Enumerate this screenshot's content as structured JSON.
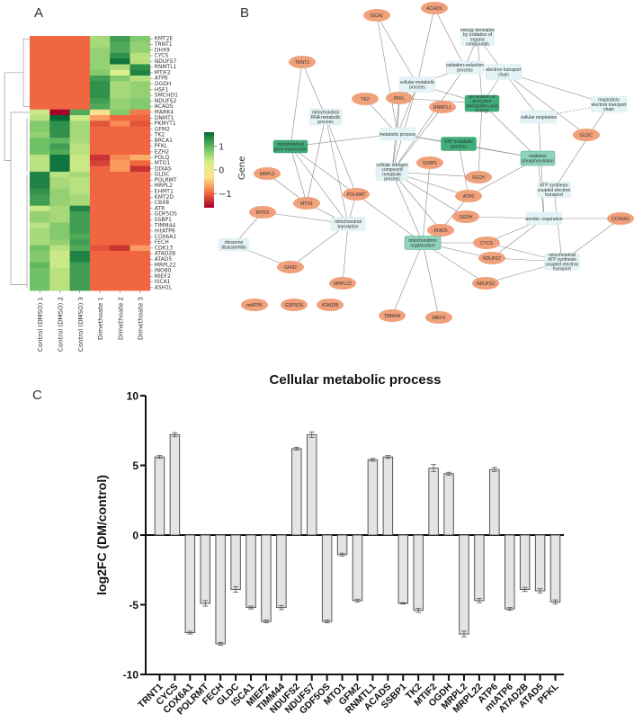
{
  "panels": {
    "a": "A",
    "b": "B",
    "c": "C"
  },
  "chart_data": [
    {
      "type": "heatmap",
      "panel": "A",
      "columns": [
        "Control (DMSO) 1",
        "Control (DMSO) 2",
        "Control (DMSO) 3",
        "Dimethoate 1",
        "Dimethoate 2",
        "Dimethoate 3"
      ],
      "rows": [
        "KMT2E",
        "TRNT1",
        "DHX9",
        "CYCS",
        "NDUFS7",
        "RNMTL1",
        "MTIF2",
        "ATP6",
        "OGDH",
        "HSF1",
        "SMCHD1",
        "NDUFS2",
        "ACADS",
        "MARK4",
        "DNMT1",
        "PKMYT1",
        "GFM2",
        "TK2",
        "BRCA1",
        "PFKL",
        "EZH2",
        "POLQ",
        "MTO1",
        "DDIAS",
        "GLDC",
        "POLRMT",
        "MRPL2",
        "EHMT1",
        "KMT2D",
        "CBX8",
        "ATR",
        "GDF5OS",
        "SSBP1",
        "TIMM44",
        "mtATP6",
        "COX6A1",
        "FECH",
        "CDK13",
        "ATAD2B",
        "ATAD5",
        "MRPL22",
        "INO80",
        "MIEF2",
        "ISCA1",
        "ASH1L"
      ],
      "values": [
        [
          -1.0,
          -1.0,
          -1.0,
          0.6,
          1.2,
          0.8
        ],
        [
          -1.0,
          -1.0,
          -1.0,
          0.6,
          1.1,
          0.7
        ],
        [
          -1.0,
          -1.0,
          -1.0,
          0.7,
          1.1,
          0.7
        ],
        [
          -1.0,
          -1.0,
          -1.0,
          0.7,
          1.3,
          0.5
        ],
        [
          -1.0,
          -1.0,
          -1.0,
          0.7,
          1.5,
          0.5
        ],
        [
          -1.0,
          -1.0,
          -1.0,
          0.7,
          0.6,
          1.3
        ],
        [
          -1.0,
          -1.0,
          -1.0,
          0.8,
          0.3,
          1.4
        ],
        [
          -1.0,
          -1.0,
          -1.0,
          1.2,
          0.8,
          0.5
        ],
        [
          -1.0,
          -1.0,
          -1.0,
          1.3,
          0.6,
          0.7
        ],
        [
          -1.0,
          -1.0,
          -1.0,
          1.3,
          0.6,
          0.7
        ],
        [
          -1.0,
          -1.0,
          -1.0,
          1.3,
          0.6,
          0.7
        ],
        [
          -1.0,
          -1.0,
          -1.0,
          1.2,
          0.7,
          0.8
        ],
        [
          -1.0,
          -1.0,
          -1.0,
          1.1,
          0.7,
          0.8
        ],
        [
          0.4,
          -1.6,
          1.1,
          -0.3,
          0.8,
          -0.9
        ],
        [
          0.5,
          1.6,
          0.4,
          -0.7,
          -1.0,
          -1.0
        ],
        [
          0.8,
          1.3,
          0.6,
          -1.1,
          -0.8,
          -1.1
        ],
        [
          0.8,
          1.3,
          0.6,
          -1.0,
          -1.0,
          -1.0
        ],
        [
          0.7,
          1.3,
          0.6,
          -1.0,
          -1.0,
          -1.0
        ],
        [
          0.9,
          1.0,
          0.6,
          -1.0,
          -1.0,
          -1.0
        ],
        [
          0.9,
          1.2,
          0.5,
          -1.0,
          -1.0,
          -1.0
        ],
        [
          0.9,
          1.1,
          0.5,
          -1.0,
          -1.0,
          -1.0
        ],
        [
          0.5,
          1.5,
          0.4,
          -1.3,
          -0.8,
          -0.6
        ],
        [
          0.5,
          1.5,
          0.4,
          -1.2,
          -0.7,
          -1.0
        ],
        [
          0.5,
          1.5,
          0.4,
          -1.0,
          -0.7,
          -1.3
        ],
        [
          1.4,
          0.5,
          0.6,
          -1.0,
          -1.0,
          -1.0
        ],
        [
          1.4,
          0.6,
          0.5,
          -1.0,
          -1.0,
          -1.0
        ],
        [
          1.4,
          0.6,
          0.5,
          -1.0,
          -1.0,
          -1.0
        ],
        [
          1.3,
          0.7,
          0.5,
          -1.0,
          -1.0,
          -1.0
        ],
        [
          1.2,
          0.7,
          0.6,
          -1.0,
          -1.0,
          -1.0
        ],
        [
          1.2,
          0.7,
          0.6,
          -1.0,
          -1.0,
          -1.0
        ],
        [
          0.4,
          0.6,
          1.4,
          -1.0,
          -1.0,
          -1.0
        ],
        [
          0.7,
          0.6,
          1.2,
          -1.0,
          -1.0,
          -1.0
        ],
        [
          0.7,
          0.6,
          1.2,
          -1.0,
          -1.0,
          -1.0
        ],
        [
          0.5,
          0.8,
          1.2,
          -1.0,
          -1.0,
          -1.0
        ],
        [
          0.6,
          0.8,
          1.2,
          -1.0,
          -1.0,
          -1.0
        ],
        [
          0.6,
          0.8,
          1.1,
          -1.0,
          -1.0,
          -1.0
        ],
        [
          0.6,
          0.7,
          1.2,
          -1.0,
          -1.0,
          -1.0
        ],
        [
          0.9,
          0.5,
          1.1,
          -1.1,
          -1.3,
          -0.7
        ],
        [
          0.8,
          0.4,
          1.4,
          -1.0,
          -1.0,
          -1.0
        ],
        [
          0.8,
          0.4,
          1.4,
          -1.0,
          -1.0,
          -1.0
        ],
        [
          1.0,
          0.4,
          1.2,
          -1.0,
          -1.0,
          -1.0
        ],
        [
          0.9,
          0.5,
          1.2,
          -1.0,
          -1.0,
          -1.0
        ],
        [
          0.9,
          0.5,
          1.2,
          -1.0,
          -1.0,
          -1.0
        ],
        [
          0.9,
          0.5,
          1.2,
          -1.0,
          -1.0,
          -1.0
        ],
        [
          0.9,
          0.5,
          1.2,
          -1.0,
          -1.0,
          -1.0
        ]
      ],
      "colorbar": {
        "label": "Gene",
        "ticks": [
          "1",
          "0",
          "−1"
        ],
        "tick_values": [
          1,
          0,
          -1
        ],
        "range": [
          -1.6,
          1.6
        ]
      },
      "colormap": [
        "#a50026",
        "#f46d43",
        "#fee08b",
        "#d9ef8b",
        "#66bd63",
        "#006837"
      ]
    },
    {
      "type": "network",
      "panel": "B",
      "colors": {
        "gene": "#f0a07a",
        "process_light": "#e4f3f5",
        "process_mid": "#8fd4bd",
        "process_dark": "#3fae7a",
        "edge": "#888888"
      },
      "process_nodes": [
        {
          "id": "cmp",
          "label": [
            "cellular metabolic",
            "process"
          ],
          "shade": "light"
        },
        {
          "id": "orp",
          "label": [
            "oxidation-reduction",
            "process"
          ],
          "shade": "light"
        },
        {
          "id": "edo",
          "label": [
            "energy derivation",
            "by oxidation of",
            "organic",
            "compounds"
          ],
          "shade": "light"
        },
        {
          "id": "etc",
          "label": [
            "electron transport",
            "chain"
          ],
          "shade": "light"
        },
        {
          "id": "retc",
          "label": [
            "respiratory",
            "electron transport",
            "chain"
          ],
          "shade": "light"
        },
        {
          "id": "mrna",
          "label": [
            "mitochondrial",
            "RNA metabolic",
            "process"
          ],
          "shade": "light"
        },
        {
          "id": "mp",
          "label": [
            "metabolic process"
          ],
          "shade": "light"
        },
        {
          "id": "gpm",
          "label": [
            "generation of",
            "precursor",
            "metabolites and",
            "energy"
          ],
          "shade": "dark"
        },
        {
          "id": "cr",
          "label": [
            "cellular respiration"
          ],
          "shade": "light"
        },
        {
          "id": "mge",
          "label": [
            "mitochondrial",
            "gene expression"
          ],
          "shade": "dark"
        },
        {
          "id": "atpm",
          "label": [
            "ATP metabolic",
            "process"
          ],
          "shade": "dark"
        },
        {
          "id": "cnc",
          "label": [
            "cellular nitrogen",
            "compound",
            "metabolic",
            "process"
          ],
          "shade": "light"
        },
        {
          "id": "ox",
          "label": [
            "oxidative",
            "phosphorylation"
          ],
          "shade": "mid"
        },
        {
          "id": "atps",
          "label": [
            "ATP synthesis",
            "coupled electron",
            "transport"
          ],
          "shade": "light"
        },
        {
          "id": "ar",
          "label": [
            "aerobic respiration"
          ],
          "shade": "light"
        },
        {
          "id": "mt",
          "label": [
            "mitochondrial",
            "translation"
          ],
          "shade": "light"
        },
        {
          "id": "mo",
          "label": [
            "mitochondrion",
            "organization"
          ],
          "shade": "mid"
        },
        {
          "id": "matp",
          "label": [
            "mitochondrial",
            "ATP synthesis",
            "coupled electron",
            "transport"
          ],
          "shade": "light"
        },
        {
          "id": "rd",
          "label": [
            "ribosome",
            "disassembly"
          ],
          "shade": "light"
        }
      ],
      "gene_nodes": [
        "ISCA1",
        "ACADS",
        "TRNT1",
        "TK2",
        "PFKL",
        "RNMTL1",
        "GLDC",
        "MRPL2",
        "MTO1",
        "POLRMT",
        "SSBP1",
        "FECH",
        "ATP6",
        "OGDH",
        "ATAD5",
        "MTIF2",
        "GFM2",
        "MRPL22",
        "CYCS",
        "NDUFS7",
        "NDUFS2",
        "COX6A1",
        "mtATP6",
        "GDF5OS",
        "ATAD2B",
        "TIMM44",
        "MIEF2"
      ]
    },
    {
      "type": "bar",
      "panel": "C",
      "title": "Cellular metabolic process",
      "xlabel": "",
      "ylabel": "log2FC (DM/control)",
      "ylim": [
        -10,
        10
      ],
      "yticks": [
        10,
        5,
        0,
        -5,
        -10
      ],
      "bar_color": "#e4e4e4",
      "categories": [
        "TRNT1",
        "CYCS",
        "COX6A1",
        "POLRMT",
        "FECH",
        "GLDC",
        "ISCA1",
        "MIEF2",
        "TIMM44",
        "NDUFS2",
        "NDUFS7",
        "GDF5OS",
        "MTO1",
        "GFM2",
        "RNMTL1",
        "ACADS",
        "SSBP1",
        "TK2",
        "MTIF2",
        "OGDH",
        "MRPL2",
        "MRPL22",
        "ATP6",
        "mtATP6",
        "ATAD2B",
        "ATAD5",
        "PFKL"
      ],
      "values": [
        5.6,
        7.2,
        -7.0,
        -4.9,
        -7.8,
        -3.9,
        -5.2,
        -6.2,
        -5.2,
        6.2,
        7.2,
        -6.2,
        -1.4,
        -4.7,
        5.4,
        5.6,
        -4.9,
        -5.4,
        4.8,
        4.4,
        -7.1,
        -4.7,
        4.7,
        -5.3,
        -3.9,
        -4.0,
        -4.8
      ],
      "errors": [
        0.1,
        0.15,
        0.1,
        0.2,
        0.1,
        0.2,
        0.1,
        0.1,
        0.15,
        0.1,
        0.2,
        0.1,
        0.1,
        0.1,
        0.1,
        0.1,
        0.05,
        0.15,
        0.25,
        0.1,
        0.2,
        0.15,
        0.15,
        0.1,
        0.15,
        0.15,
        0.15
      ]
    }
  ]
}
